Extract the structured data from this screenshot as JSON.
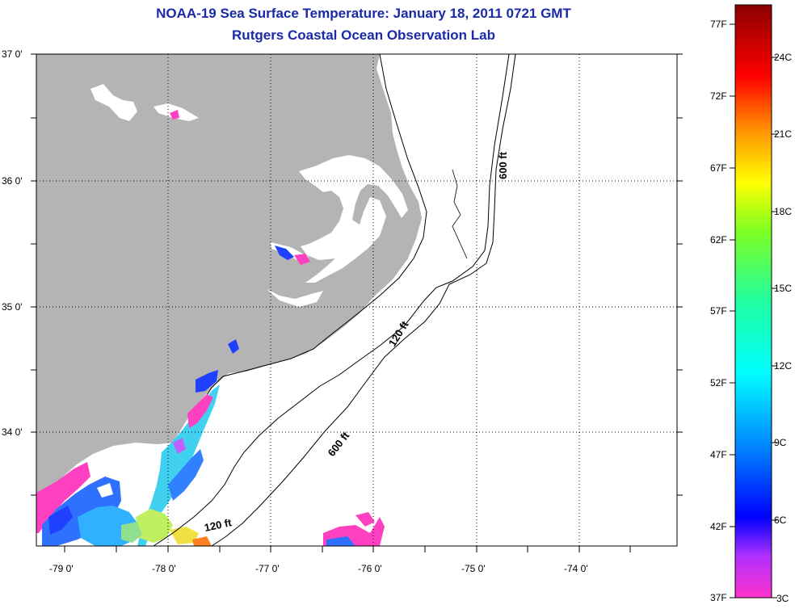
{
  "title": "NOAA-19 Sea Surface Temperature:  January 18, 2011 0721 GMT",
  "subtitle": "Rutgers Coastal Ocean Observation Lab",
  "axes": {
    "lat_labels": [
      "37 0'",
      "36 0'",
      "35 0'",
      "34 0'"
    ],
    "lon_labels": [
      "-79 0'",
      "-78 0'",
      "-77 0'",
      "-76 0'",
      "-75 0'",
      "-74 0'"
    ]
  },
  "contours": {
    "label_120_a": "120 ft",
    "label_120_b": "120 ft",
    "label_600_a": "600 ft",
    "label_600_b": "600 ft"
  },
  "colorbar": {
    "fahrenheit": [
      "77F",
      "72F",
      "67F",
      "62F",
      "57F",
      "52F",
      "47F",
      "42F",
      "37F"
    ],
    "celsius": [
      "24C",
      "21C",
      "18C",
      "15C",
      "12C",
      "9C",
      "6C",
      "3C"
    ]
  },
  "colors": {
    "title": "#1a2aa8",
    "land": "#b4b4b4",
    "ocean": "#ffffff"
  }
}
